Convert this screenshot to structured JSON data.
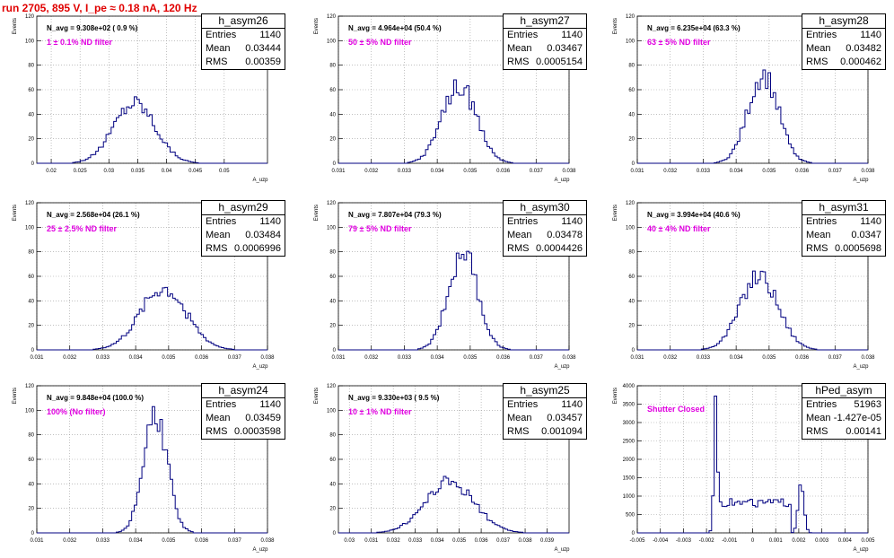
{
  "figure_title": "run 2705,   895 V, I_pe ≈ 0.18 nA, 120 Hz",
  "stat_labels": {
    "entries": "Entries",
    "mean": "Mean",
    "rms": "RMS"
  },
  "colors": {
    "histogram": "#000080",
    "title": "#e00000",
    "annotation": "#e000e0",
    "grid": "#9a9a9a"
  },
  "panels": [
    {
      "name": "h_asym26",
      "navg": "N_avg = 9.308e+02 ( 0.9 %)",
      "filter": "1 ± 0.1% ND filter",
      "entries": "1140",
      "mean": "0.03444",
      "rms": "0.00359"
    },
    {
      "name": "h_asym27",
      "navg": "N_avg = 4.964e+04 (50.4 %)",
      "filter": "50 ± 5% ND filter",
      "entries": "1140",
      "mean": "0.03467",
      "rms": "0.0005154"
    },
    {
      "name": "h_asym28",
      "navg": "N_avg = 6.235e+04 (63.3 %)",
      "filter": "63 ± 5% ND filter",
      "entries": "1140",
      "mean": "0.03482",
      "rms": "0.000462"
    },
    {
      "name": "h_asym29",
      "navg": "N_avg = 2.568e+04 (26.1 %)",
      "filter": "25 ± 2.5% ND filter",
      "entries": "1140",
      "mean": "0.03484",
      "rms": "0.0006996"
    },
    {
      "name": "h_asym30",
      "navg": "N_avg = 7.807e+04 (79.3 %)",
      "filter": "79 ± 5% ND filter",
      "entries": "1140",
      "mean": "0.03478",
      "rms": "0.0004426"
    },
    {
      "name": "h_asym31",
      "navg": "N_avg = 3.994e+04 (40.6 %)",
      "filter": "40 ± 4% ND filter",
      "entries": "1140",
      "mean": "0.0347",
      "rms": "0.0005698"
    },
    {
      "name": "h_asym24",
      "navg": "N_avg = 9.848e+04 (100.0 %)",
      "filter": "100% (No filter)",
      "entries": "1140",
      "mean": "0.03459",
      "rms": "0.0003598"
    },
    {
      "name": "h_asym25",
      "navg": "N_avg = 9.330e+03 ( 9.5 %)",
      "filter": "10 ± 1% ND filter",
      "entries": "1140",
      "mean": "0.03457",
      "rms": "0.001094"
    },
    {
      "name": "hPed_asym",
      "navg": "",
      "filter": "Shutter Closed",
      "entries": "51963",
      "mean": "-1.427e-05",
      "rms": "0.00141"
    }
  ],
  "chart_data": [
    {
      "type": "histogram",
      "title": "h_asym26",
      "xlabel": "A_uzp",
      "ylabel": "Events",
      "xlim": [
        0.0175,
        0.0575
      ],
      "ylim": [
        0,
        120
      ],
      "xticks": [
        "0.02",
        "0.025",
        "0.03",
        "0.035",
        "0.04",
        "0.045",
        "0.05"
      ],
      "yticks": [
        "0",
        "20",
        "40",
        "60",
        "80",
        "100",
        "120"
      ],
      "peaks": [
        {
          "mean": 0.03444,
          "sigma": 0.00359,
          "height": 50
        }
      ]
    },
    {
      "type": "histogram",
      "title": "h_asym27",
      "xlabel": "A_uzp",
      "ylabel": "Events",
      "xlim": [
        0.031,
        0.038
      ],
      "ylim": [
        0,
        120
      ],
      "xticks": [
        "0.031",
        "0.032",
        "0.033",
        "0.034",
        "0.035",
        "0.036",
        "0.037",
        "0.038"
      ],
      "yticks": [
        "0",
        "20",
        "40",
        "60",
        "80",
        "100",
        "120"
      ],
      "peaks": [
        {
          "mean": 0.03467,
          "sigma": 0.000515,
          "height": 63
        }
      ]
    },
    {
      "type": "histogram",
      "title": "h_asym28",
      "xlabel": "A_uzp",
      "ylabel": "Events",
      "xlim": [
        0.031,
        0.038
      ],
      "ylim": [
        0,
        120
      ],
      "xticks": [
        "0.031",
        "0.032",
        "0.033",
        "0.034",
        "0.035",
        "0.036",
        "0.037",
        "0.038"
      ],
      "yticks": [
        "0",
        "20",
        "40",
        "60",
        "80",
        "100",
        "120"
      ],
      "peaks": [
        {
          "mean": 0.03482,
          "sigma": 0.000462,
          "height": 72
        }
      ]
    },
    {
      "type": "histogram",
      "title": "h_asym29",
      "xlabel": "A_uzp",
      "ylabel": "Events",
      "xlim": [
        0.031,
        0.038
      ],
      "ylim": [
        0,
        120
      ],
      "xticks": [
        "0.031",
        "0.032",
        "0.033",
        "0.034",
        "0.035",
        "0.036",
        "0.037",
        "0.038"
      ],
      "yticks": [
        "0",
        "20",
        "40",
        "60",
        "80",
        "100",
        "120"
      ],
      "peaks": [
        {
          "mean": 0.03484,
          "sigma": 0.0007,
          "height": 50
        }
      ]
    },
    {
      "type": "histogram",
      "title": "h_asym30",
      "xlabel": "A_uzp",
      "ylabel": "Events",
      "xlim": [
        0.031,
        0.038
      ],
      "ylim": [
        0,
        120
      ],
      "xticks": [
        "0.031",
        "0.032",
        "0.033",
        "0.034",
        "0.035",
        "0.036",
        "0.037",
        "0.038"
      ],
      "yticks": [
        "0",
        "20",
        "40",
        "60",
        "80",
        "100",
        "120"
      ],
      "peaks": [
        {
          "mean": 0.03478,
          "sigma": 0.00044,
          "height": 80
        }
      ]
    },
    {
      "type": "histogram",
      "title": "h_asym31",
      "xlabel": "A_uzp",
      "ylabel": "Events",
      "xlim": [
        0.031,
        0.038
      ],
      "ylim": [
        0,
        120
      ],
      "xticks": [
        "0.031",
        "0.032",
        "0.033",
        "0.034",
        "0.035",
        "0.036",
        "0.037",
        "0.038"
      ],
      "yticks": [
        "0",
        "20",
        "40",
        "60",
        "80",
        "100",
        "120"
      ],
      "peaks": [
        {
          "mean": 0.0347,
          "sigma": 0.00057,
          "height": 60
        }
      ]
    },
    {
      "type": "histogram",
      "title": "h_asym24",
      "xlabel": "A_uzp",
      "ylabel": "Events",
      "xlim": [
        0.031,
        0.038
      ],
      "ylim": [
        0,
        120
      ],
      "xticks": [
        "0.031",
        "0.032",
        "0.033",
        "0.034",
        "0.035",
        "0.036",
        "0.037",
        "0.038"
      ],
      "yticks": [
        "0",
        "20",
        "40",
        "60",
        "80",
        "100",
        "120"
      ],
      "peaks": [
        {
          "mean": 0.0346,
          "sigma": 0.00036,
          "height": 96
        }
      ]
    },
    {
      "type": "histogram",
      "title": "h_asym25",
      "xlabel": "A_uzp",
      "ylabel": "Events",
      "xlim": [
        0.0295,
        0.04
      ],
      "ylim": [
        0,
        120
      ],
      "xticks": [
        "0.03",
        "0.031",
        "0.032",
        "0.033",
        "0.034",
        "0.035",
        "0.036",
        "0.037",
        "0.038",
        "0.039"
      ],
      "yticks": [
        "0",
        "20",
        "40",
        "60",
        "80",
        "100",
        "120"
      ],
      "peaks": [
        {
          "mean": 0.03457,
          "sigma": 0.0011,
          "height": 42
        }
      ]
    },
    {
      "type": "histogram",
      "title": "hPed_asym",
      "xlabel": "A_uzp",
      "ylabel": "Events",
      "xlim": [
        -0.005,
        0.005
      ],
      "ylim": [
        0,
        4000
      ],
      "xticks": [
        "-0.005",
        "-0.004",
        "-0.003",
        "-0.002",
        "-0.001",
        "0",
        "0.001",
        "0.002",
        "0.003",
        "0.004",
        "0.005"
      ],
      "yticks": [
        "0",
        "500",
        "1000",
        "1500",
        "2000",
        "2500",
        "3000",
        "3500",
        "4000"
      ],
      "peaks": [
        {
          "mean": -0.0016,
          "sigma": 8e-05,
          "height": 3700
        },
        {
          "mean": 0.0021,
          "sigma": 0.00012,
          "height": 1500
        }
      ],
      "plateau": {
        "from": -0.0014,
        "to": 0.0017,
        "level": 820
      }
    }
  ]
}
